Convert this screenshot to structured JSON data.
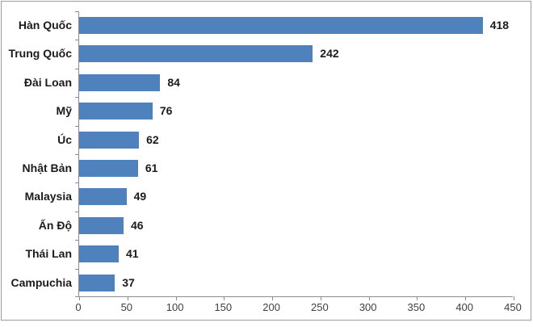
{
  "chart_data": {
    "type": "bar",
    "orientation": "horizontal",
    "title": "",
    "xlabel": "",
    "ylabel": "",
    "categories": [
      "Hàn Quốc",
      "Trung Quốc",
      "Đài Loan",
      "Mỹ",
      "Úc",
      "Nhật Bản",
      "Malaysia",
      "Ấn Độ",
      "Thái Lan",
      "Campuchia"
    ],
    "values": [
      418,
      242,
      84,
      76,
      62,
      61,
      49,
      46,
      41,
      37
    ],
    "xlim": [
      0,
      450
    ],
    "x_ticks": [
      0,
      50,
      100,
      150,
      200,
      250,
      300,
      350,
      400,
      450
    ],
    "grid": false,
    "legend": false,
    "data_labels": true,
    "colors": {
      "bar": "#4f81bd",
      "axis_line": "#8c8c8c",
      "category_label": "#1b1b1b",
      "value_label": "#1b1b1b",
      "tick_label": "#3f3f3f",
      "frame_border": "#9d9d9d",
      "background": "#ffffff"
    }
  }
}
